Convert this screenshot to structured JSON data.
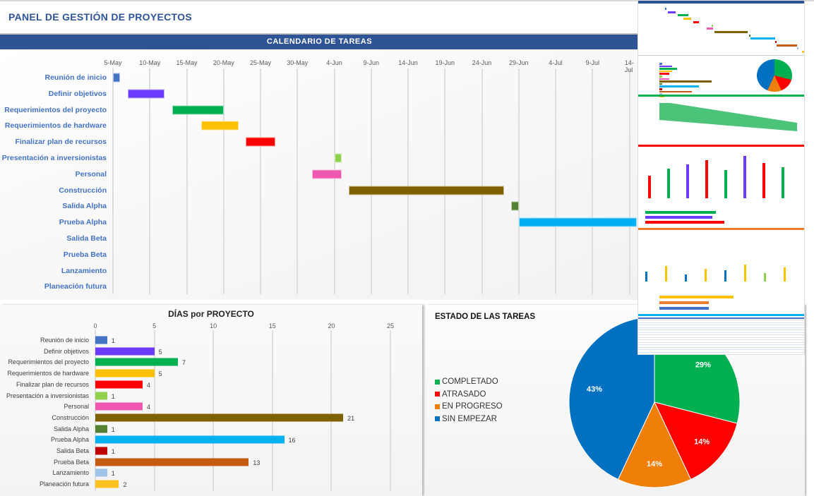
{
  "page_title": "PANEL DE GESTIÓN DE PROYECTOS",
  "gantt": {
    "title": "CALENDARIO DE TAREAS",
    "ticks": [
      "5-May",
      "10-May",
      "15-May",
      "20-May",
      "25-May",
      "30-May",
      "4-Jun",
      "9-Jun",
      "14-Jun",
      "19-Jun",
      "24-Jun",
      "29-Jun",
      "4-Jul",
      "9-Jul",
      "14-Jul"
    ],
    "tasks": [
      {
        "label": "Reunión de inicio",
        "start": "5-May",
        "days": 1,
        "color": "#4472C4"
      },
      {
        "label": "Definir objetivos",
        "start": "7-May",
        "days": 5,
        "color": "#6B3BFF"
      },
      {
        "label": "Requerimientos del proyecto",
        "start": "13-May",
        "days": 7,
        "color": "#00B050"
      },
      {
        "label": "Requerimientos de hardware",
        "start": "17-May",
        "days": 5,
        "color": "#FFC000"
      },
      {
        "label": "Finalizar plan de recursos",
        "start": "23-May",
        "days": 4,
        "color": "#FF0000"
      },
      {
        "label": "Presentación a inversionistas",
        "start": "4-Jun",
        "days": 1,
        "color": "#92D050"
      },
      {
        "label": "Personal",
        "start": "1-Jun",
        "days": 4,
        "color": "#EE58B0"
      },
      {
        "label": "Construcción",
        "start": "6-Jun",
        "days": 21,
        "color": "#7F6000"
      },
      {
        "label": "Salida Alpha",
        "start": "28-Jun",
        "days": 1,
        "color": "#548235"
      },
      {
        "label": "Prueba Alpha",
        "start": "29-Jun",
        "days": 16,
        "color": "#00B0F0"
      },
      {
        "label": "Salida Beta"
      },
      {
        "label": "Prueba Beta"
      },
      {
        "label": "Lanzamiento"
      },
      {
        "label": "Planeación futura"
      }
    ]
  },
  "chart_data": [
    {
      "type": "bar",
      "orientation": "horizontal",
      "title": "DÍAS por PROYECTO",
      "xlim": [
        0,
        25
      ],
      "ticks": [
        0,
        5,
        10,
        15,
        20,
        25
      ],
      "grid": true,
      "categories": [
        "Reunión de inicio",
        "Definir objetivos",
        "Requerimientos del proyecto",
        "Requerimientos de hardware",
        "Finalizar plan de recursos",
        "Presentación a inversionistas",
        "Personal",
        "Construcción",
        "Salida Alpha",
        "Prueba Alpha",
        "Salida Beta",
        "Prueba Beta",
        "Lanzamiento",
        "Planeación futura"
      ],
      "values": [
        1,
        5,
        7,
        5,
        4,
        1,
        4,
        21,
        1,
        16,
        1,
        13,
        1,
        2
      ],
      "colors": [
        "#4472C4",
        "#6B3BFF",
        "#00B050",
        "#FFC000",
        "#FF0000",
        "#92D050",
        "#EE58B0",
        "#7F6000",
        "#548235",
        "#00B0F0",
        "#C00000",
        "#C55A11",
        "#9DC3E6",
        "#FFC020"
      ]
    },
    {
      "type": "pie",
      "title": "ESTADO DE LAS TAREAS",
      "legend": "left",
      "slices": [
        {
          "label": "COMPLETADO",
          "value": 29,
          "display": "29%",
          "color": "#00B050"
        },
        {
          "label": "ATRASADO",
          "value": 14,
          "display": "14%",
          "color": "#FF0000"
        },
        {
          "label": "EN PROGRESO",
          "value": 14,
          "display": "14%",
          "color": "#F07F09"
        },
        {
          "label": "SIN EMPEZAR",
          "value": 43,
          "display": "43%",
          "color": "#0070C0"
        }
      ]
    }
  ]
}
